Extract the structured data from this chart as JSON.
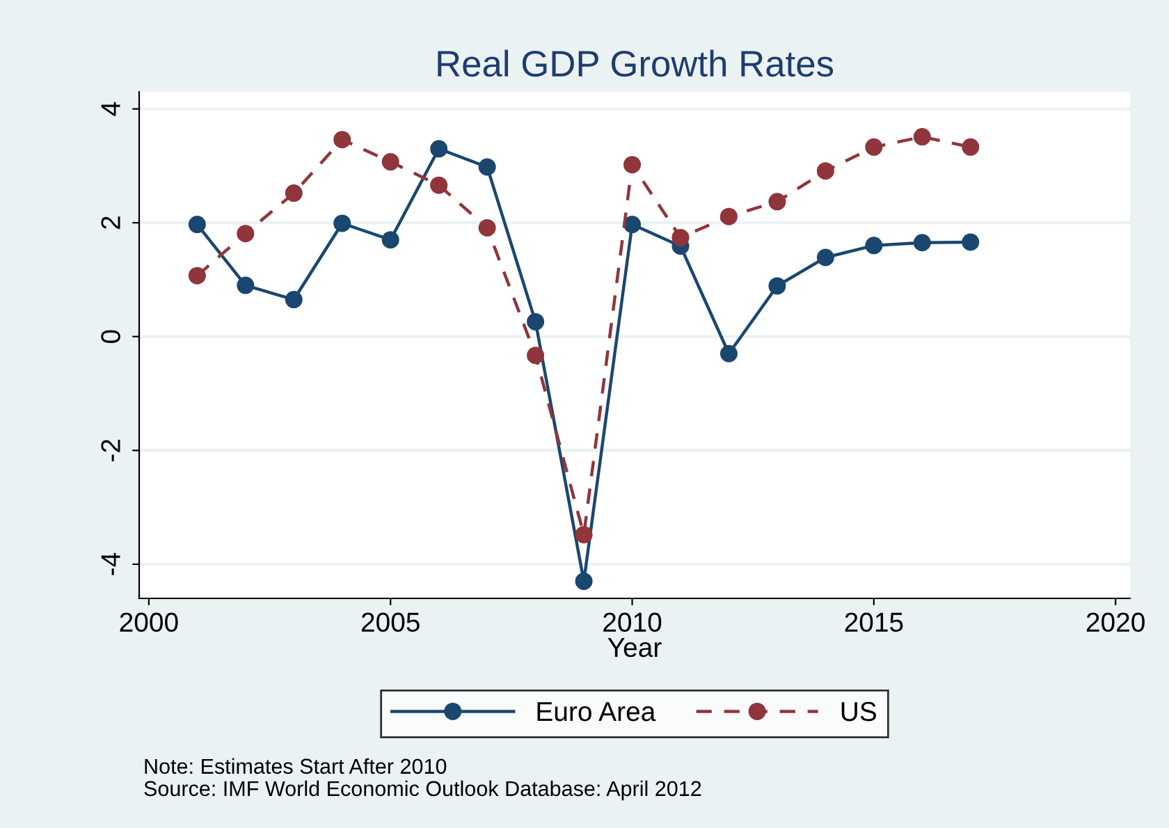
{
  "chart_data": {
    "type": "line",
    "title": "Real GDP Growth Rates",
    "xlabel": "Year",
    "x": [
      2001,
      2002,
      2003,
      2004,
      2005,
      2006,
      2007,
      2008,
      2009,
      2010,
      2011,
      2012,
      2013,
      2014,
      2015,
      2016,
      2017
    ],
    "series": [
      {
        "name": "Euro Area",
        "color": "#1a476f",
        "line_style": "solid",
        "values": [
          1.97,
          0.9,
          0.65,
          1.99,
          1.7,
          3.3,
          2.98,
          0.26,
          -4.3,
          1.97,
          1.59,
          -0.3,
          0.89,
          1.39,
          1.6,
          1.65,
          1.66
        ]
      },
      {
        "name": "US",
        "color": "#90353b",
        "line_style": "dashed",
        "values": [
          1.07,
          1.81,
          2.52,
          3.46,
          3.07,
          2.66,
          1.91,
          -0.33,
          -3.48,
          3.02,
          1.74,
          2.11,
          2.37,
          2.91,
          3.33,
          3.51,
          3.33
        ]
      }
    ],
    "marker": "circle",
    "xlim": [
      1999.8,
      2020.3
    ],
    "ylim": [
      -4.6,
      4.3
    ],
    "xticks": [
      2000,
      2005,
      2010,
      2015,
      2020
    ],
    "yticks": [
      -4,
      -2,
      0,
      2,
      4
    ],
    "grid": "y",
    "legend": "bottom",
    "annotations": [
      "Note: Estimates Start After 2010",
      "Source: IMF World Economic Outlook Database: April 2012"
    ]
  }
}
